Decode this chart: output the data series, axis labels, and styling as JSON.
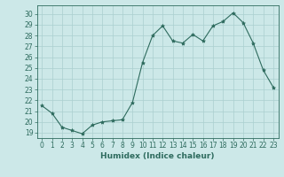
{
  "x": [
    0,
    1,
    2,
    3,
    4,
    5,
    6,
    7,
    8,
    9,
    10,
    11,
    12,
    13,
    14,
    15,
    16,
    17,
    18,
    19,
    20,
    21,
    22,
    23
  ],
  "y": [
    21.5,
    20.8,
    19.5,
    19.2,
    18.9,
    19.7,
    20.0,
    20.1,
    20.2,
    21.8,
    25.5,
    28.0,
    28.9,
    27.5,
    27.3,
    28.1,
    27.5,
    28.9,
    29.3,
    30.1,
    29.2,
    27.3,
    24.8,
    23.2
  ],
  "line_color": "#2e6b5e",
  "marker": "*",
  "marker_size": 3,
  "bg_color": "#cce8e8",
  "grid_color": "#aacfcf",
  "xlabel": "Humidex (Indice chaleur)",
  "ylim": [
    18.5,
    30.8
  ],
  "xlim": [
    -0.5,
    23.5
  ],
  "yticks": [
    19,
    20,
    21,
    22,
    23,
    24,
    25,
    26,
    27,
    28,
    29,
    30
  ],
  "xticks": [
    0,
    1,
    2,
    3,
    4,
    5,
    6,
    7,
    8,
    9,
    10,
    11,
    12,
    13,
    14,
    15,
    16,
    17,
    18,
    19,
    20,
    21,
    22,
    23
  ],
  "tick_fontsize": 5.5,
  "xlabel_fontsize": 6.5,
  "tick_color": "#2e6b5e"
}
